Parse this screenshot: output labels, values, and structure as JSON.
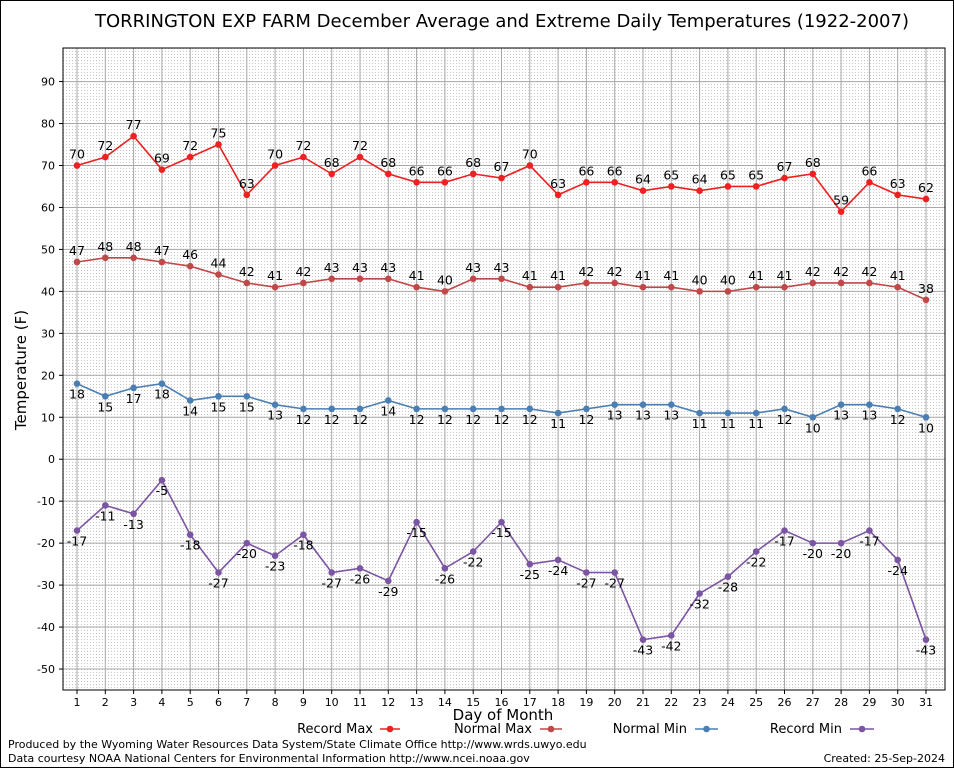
{
  "chart_data": {
    "type": "line",
    "title": "TORRINGTON EXP FARM December Average and Extreme Daily Temperatures (1922-2007)",
    "xlabel": "Day of Month",
    "ylabel": "Temperature (F)",
    "ylim": [
      -55,
      98
    ],
    "yticks": [
      -50,
      -40,
      -30,
      -20,
      -10,
      0,
      10,
      20,
      30,
      40,
      50,
      60,
      70,
      80,
      90
    ],
    "x": [
      1,
      2,
      3,
      4,
      5,
      6,
      7,
      8,
      9,
      10,
      11,
      12,
      13,
      14,
      15,
      16,
      17,
      18,
      19,
      20,
      21,
      22,
      23,
      24,
      25,
      26,
      27,
      28,
      29,
      30,
      31
    ],
    "grid": true,
    "legend_position": "bottom",
    "series": [
      {
        "name": "Record Max",
        "color": "#ee2020",
        "label_pos": "above",
        "values": [
          70,
          72,
          77,
          69,
          72,
          75,
          63,
          70,
          72,
          68,
          72,
          68,
          66,
          66,
          68,
          67,
          70,
          63,
          66,
          66,
          64,
          65,
          64,
          65,
          65,
          67,
          68,
          59,
          66,
          63,
          62
        ]
      },
      {
        "name": "Normal Max",
        "color": "#c04848",
        "label_pos": "above",
        "values": [
          47,
          48,
          48,
          47,
          46,
          44,
          42,
          41,
          42,
          43,
          43,
          43,
          41,
          40,
          43,
          43,
          41,
          41,
          42,
          42,
          41,
          41,
          40,
          40,
          41,
          41,
          42,
          42,
          42,
          41,
          38
        ]
      },
      {
        "name": "Normal Min",
        "color": "#4a7fb5",
        "label_pos": "below",
        "values": [
          18,
          15,
          17,
          18,
          14,
          15,
          15,
          13,
          12,
          12,
          12,
          14,
          12,
          12,
          12,
          12,
          12,
          11,
          12,
          13,
          13,
          13,
          11,
          11,
          11,
          12,
          10,
          13,
          13,
          12,
          10
        ]
      },
      {
        "name": "Record Min",
        "color": "#7b55a3",
        "label_pos": "below",
        "values": [
          -17,
          -11,
          -13,
          -5,
          -18,
          -27,
          -20,
          -23,
          -18,
          -27,
          -26,
          -29,
          -15,
          -26,
          -22,
          -15,
          -25,
          -24,
          -27,
          -27,
          -43,
          -42,
          -32,
          -28,
          -22,
          -17,
          -20,
          -20,
          -17,
          -24,
          -43
        ]
      }
    ]
  },
  "footer": {
    "line1": "Produced by the Wyoming Water Resources Data System/State Climate Office http://www.wrds.uwyo.edu",
    "line2": "Data courtesy NOAA National Centers for Environmental Information http://www.ncei.noaa.gov",
    "created": "Created:  25-Sep-2024"
  }
}
